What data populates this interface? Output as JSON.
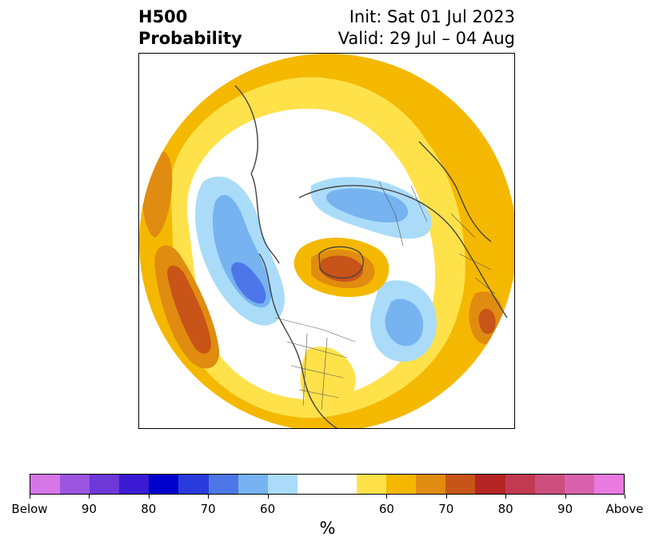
{
  "header": {
    "title_line1": "H500",
    "title_line2": "Probability",
    "init_text": "Init: Sat 01 Jul 2023",
    "valid_text": "Valid: 29 Jul – 04 Aug"
  },
  "colorbar": {
    "colors": [
      "#d675e8",
      "#9b55e0",
      "#6c38d8",
      "#3b1ad4",
      "#0000cc",
      "#2a3bdc",
      "#4d76e8",
      "#76b3f0",
      "#aadcfa",
      "#ffffff",
      "#ffffff",
      "#ffe24a",
      "#f5b800",
      "#e08c10",
      "#c85418",
      "#b52525",
      "#c23a52",
      "#cc4f7e",
      "#da62ac",
      "#e87ae0"
    ],
    "tick_labels": [
      "Below",
      "90",
      "80",
      "70",
      "60",
      "60",
      "70",
      "80",
      "90",
      "Above"
    ],
    "units": "%"
  },
  "map": {
    "projection": "north-polar-stereographic",
    "variable": "500 hPa height probability",
    "above_normal_color": "#f5b800",
    "below_normal_color": "#76b3f0"
  }
}
